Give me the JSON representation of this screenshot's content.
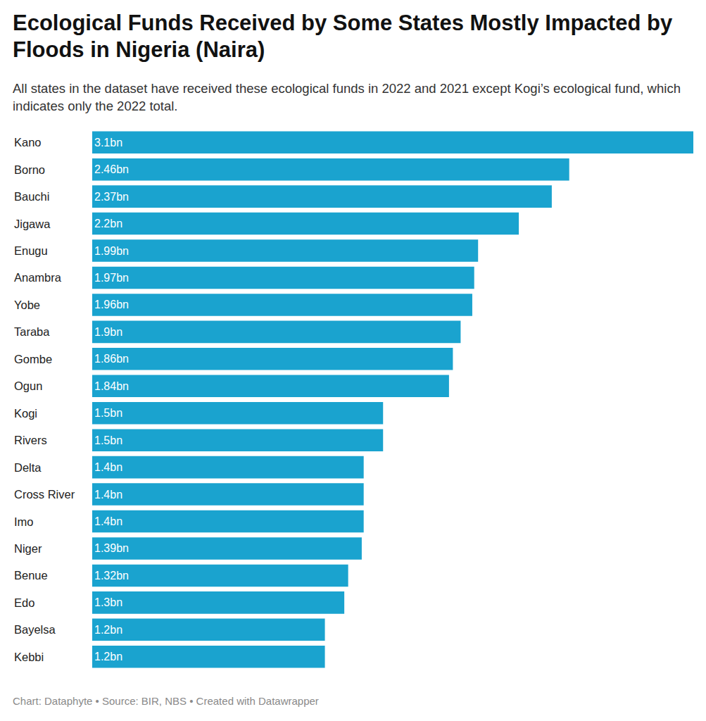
{
  "chart_data": {
    "type": "bar",
    "orientation": "horizontal",
    "title": "Ecological Funds Received by Some States Mostly Impacted by Floods in Nigeria (Naira)",
    "subtitle": "All states in the dataset have received these ecological funds in 2022 and 2021 except Kogi’s ecological fund, which indicates only the 2022 total.",
    "source": "Chart: Dataphyte • Source: BIR, NBS • Created with Datawrapper",
    "categories": [
      "Kano",
      "Borno",
      "Bauchi",
      "Jigawa",
      "Enugu",
      "Anambra",
      "Yobe",
      "Taraba",
      "Gombe",
      "Ogun",
      "Kogi",
      "Rivers",
      "Delta",
      "Cross River",
      "Imo",
      "Niger",
      "Benue",
      "Edo",
      "Bayelsa",
      "Kebbi"
    ],
    "values": [
      3.1,
      2.46,
      2.37,
      2.2,
      1.99,
      1.97,
      1.96,
      1.9,
      1.86,
      1.84,
      1.5,
      1.5,
      1.4,
      1.4,
      1.4,
      1.39,
      1.32,
      1.3,
      1.2,
      1.2
    ],
    "value_labels": [
      "3.1bn",
      "2.46bn",
      "2.37bn",
      "2.2bn",
      "1.99bn",
      "1.97bn",
      "1.96bn",
      "1.9bn",
      "1.86bn",
      "1.84bn",
      "1.5bn",
      "1.5bn",
      "1.4bn",
      "1.4bn",
      "1.4bn",
      "1.39bn",
      "1.32bn",
      "1.3bn",
      "1.2bn",
      "1.2bn"
    ],
    "color": "#1aa3cf",
    "xlim": [
      0,
      3.1
    ],
    "data_labels": true,
    "tick_labels": "y",
    "grid": false
  }
}
